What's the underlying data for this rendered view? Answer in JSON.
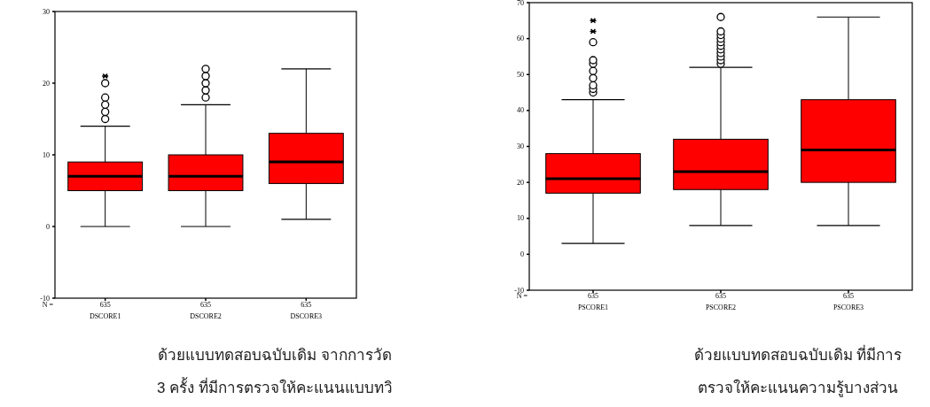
{
  "chart_data": [
    {
      "type": "box",
      "categories": [
        "DSCORE1",
        "DSCORE2",
        "DSCORE3"
      ],
      "ylim": [
        -10,
        30
      ],
      "yticks": [
        -10,
        0,
        10,
        20,
        30
      ],
      "grid": false,
      "series": [
        {
          "color": "#ff0000",
          "boxes": [
            {
              "low": 0,
              "q1": 5,
              "median": 7,
              "q3": 9,
              "high": 14,
              "outliers": [
                15,
                16,
                17,
                18,
                20,
                21
              ]
            },
            {
              "low": 0,
              "q1": 5,
              "median": 7,
              "q3": 10,
              "high": 17,
              "outliers": [
                18,
                19,
                20,
                21,
                22
              ]
            },
            {
              "low": 1,
              "q1": 6,
              "median": 9,
              "q3": 13,
              "high": 22
            }
          ]
        }
      ],
      "annotations": [
        "N =",
        "635",
        "635",
        "635",
        "ด้วยแบบทดสอบฉบับเดิม จากการวัด",
        "3 ครั้ง ที่มีการตรวจให้คะแนนแบบทวิ"
      ]
    },
    {
      "type": "box",
      "categories": [
        "PSCORE1",
        "PSCORE2",
        "PSCORE3"
      ],
      "ylim": [
        -10,
        70
      ],
      "yticks": [
        -10,
        0,
        10,
        20,
        30,
        40,
        50,
        60,
        70
      ],
      "grid": false,
      "series": [
        {
          "color": "#ff0000",
          "boxes": [
            {
              "low": 3,
              "q1": 17,
              "median": 21,
              "q3": 28,
              "high": 43,
              "outliers": [
                45,
                46,
                47,
                49,
                51,
                53,
                54,
                59,
                62,
                65
              ]
            },
            {
              "low": 8,
              "q1": 18,
              "median": 23,
              "q3": 32,
              "high": 52,
              "outliers": [
                53,
                54,
                55,
                56,
                57,
                58,
                59,
                60,
                61,
                62,
                66
              ]
            },
            {
              "low": 8,
              "q1": 20,
              "median": 29,
              "q3": 43,
              "high": 66
            }
          ]
        }
      ],
      "annotations": [
        "N =",
        "635",
        "635",
        "635",
        "ด้วยแบบทดสอบฉบับเดิม ที่มีการ",
        "ตรวจให้คะแนนความรู้บางส่วน"
      ]
    }
  ]
}
